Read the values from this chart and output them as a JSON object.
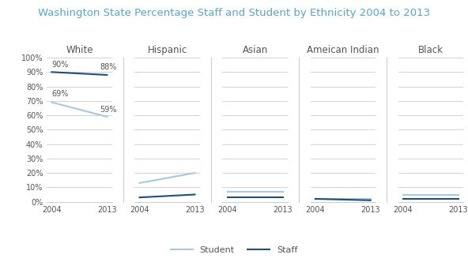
{
  "title": "Washington State Percentage Staff and Student by Ethnicity 2004 to 2013",
  "title_color": "#5ba3c9",
  "categories": [
    "White",
    "Hispanic",
    "Asian",
    "Ameican Indian",
    "Black"
  ],
  "years": [
    2004,
    2013
  ],
  "student_data": [
    [
      69,
      59
    ],
    [
      13,
      20
    ],
    [
      7,
      7
    ],
    [
      2,
      2
    ],
    [
      5,
      5
    ]
  ],
  "staff_data": [
    [
      90,
      88
    ],
    [
      3,
      5
    ],
    [
      3,
      3
    ],
    [
      2,
      1
    ],
    [
      2,
      2
    ]
  ],
  "student_color": "#a8c8e0",
  "staff_color": "#1f4e79",
  "ylim": [
    0,
    100
  ],
  "yticks": [
    0,
    10,
    20,
    30,
    40,
    50,
    60,
    70,
    80,
    90,
    100
  ],
  "background_color": "#ffffff",
  "grid_color": "#cccccc",
  "divider_color": "#cccccc"
}
